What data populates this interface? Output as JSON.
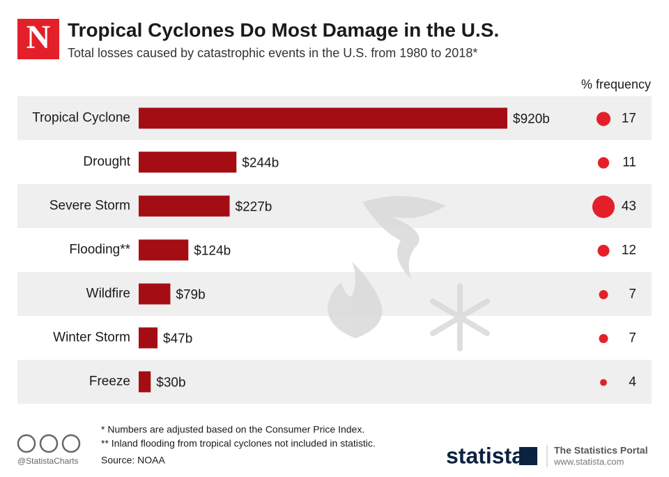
{
  "chart_data": {
    "type": "bar",
    "title": "Tropical Cyclones Do Most Damage in the U.S.",
    "subtitle": "Total losses caused by catastrophic events in the U.S. from 1980 to 2018*",
    "logo": "N",
    "categories": [
      "Tropical Cyclone",
      "Drought",
      "Severe Storm",
      "Flooding**",
      "Wildfire",
      "Winter Storm",
      "Freeze"
    ],
    "values": [
      920,
      244,
      227,
      124,
      79,
      47,
      30
    ],
    "value_labels": [
      "$920b",
      "$244b",
      "$227b",
      "$124b",
      "$79b",
      "$47b",
      "$30b"
    ],
    "color": "#a50d14",
    "frequency": {
      "label": "% frequency",
      "values": [
        17,
        11,
        43,
        12,
        7,
        7,
        4
      ],
      "color": "#e3202a"
    },
    "notes": [
      "*  Numbers are adjusted based on the Consumer Price Index.",
      "** Inland flooding from tropical cyclones not included in statistic."
    ],
    "source": "Source: NOAA",
    "branding": {
      "handle": "@StatistaCharts",
      "brand": "statista",
      "portal": "The Statistics Portal",
      "url": "www.statista.com"
    }
  }
}
